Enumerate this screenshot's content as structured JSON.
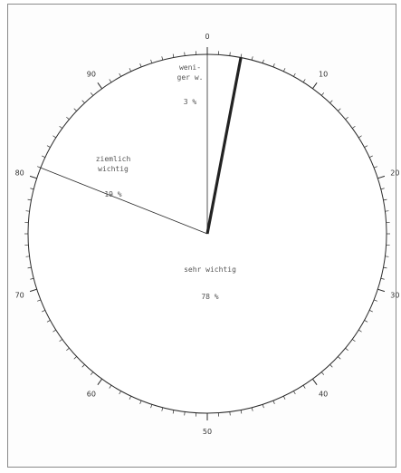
{
  "chart_data": {
    "type": "pie",
    "title": "",
    "scale": {
      "min": 0,
      "max": 100,
      "major_step": 10,
      "minor_step": 1,
      "direction": "clockwise-from-top"
    },
    "tick_labels": [
      "0",
      "10",
      "20",
      "30",
      "40",
      "50",
      "60",
      "70",
      "80",
      "90"
    ],
    "slices": [
      {
        "label_lines": [
          "weni-",
          "ger w."
        ],
        "value": 3,
        "value_label": "3 %"
      },
      {
        "label_lines": [
          "sehr wichtig"
        ],
        "value": 78,
        "value_label": "78 %"
      },
      {
        "label_lines": [
          "ziemlich",
          "wichtig"
        ],
        "value": 19,
        "value_label": "19 %"
      }
    ],
    "colors": {
      "outline": "#2a2a2a",
      "slice_fill": "#ffffff",
      "emphasis_line": "#222222"
    }
  }
}
